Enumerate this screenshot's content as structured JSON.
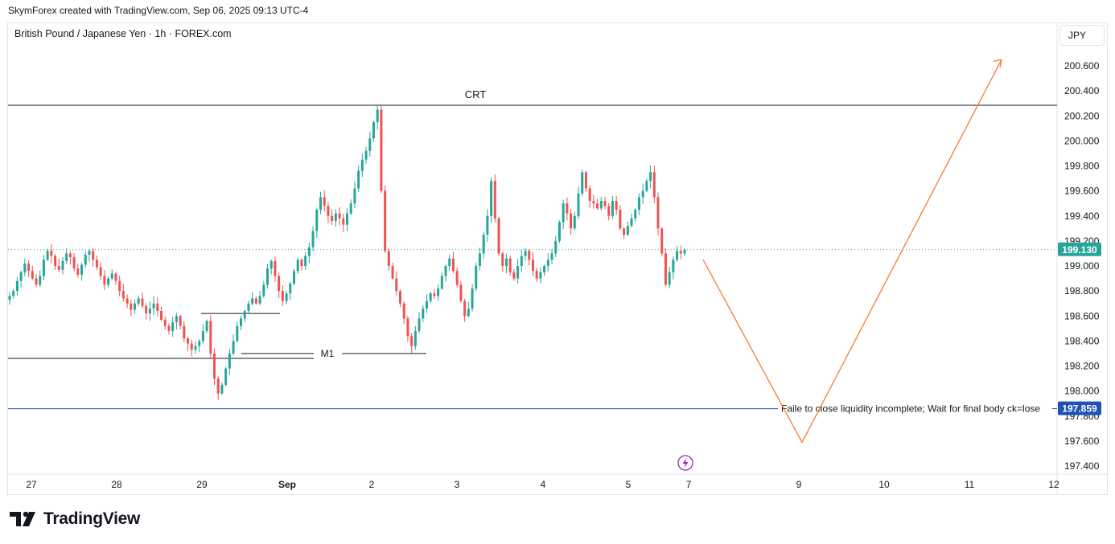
{
  "header": {
    "attribution": "SkymForex created with TradingView.com, Sep 06, 2025 09:13 UTC-4"
  },
  "symbol": {
    "title": "British Pound / Japanese Yen · 1h · FOREX.com",
    "currency": "JPY"
  },
  "footer": {
    "brand": "TradingView"
  },
  "colors": {
    "up": "#26a69a",
    "down": "#ef5350",
    "projection": "#f57c33",
    "level_blue": "#1e53b4",
    "current_price_bg": "#26a69a",
    "marker_purple": "#9c27b0"
  },
  "chart_data": {
    "type": "candlestick",
    "timeframe": "1h",
    "ylim": [
      197.4,
      200.6
    ],
    "y_ticks": [
      "200.600",
      "200.400",
      "200.200",
      "200.000",
      "199.800",
      "199.600",
      "199.400",
      "199.200",
      "199.000",
      "198.800",
      "198.600",
      "198.400",
      "198.200",
      "198.000",
      "197.800",
      "197.600",
      "197.400"
    ],
    "x_ticks": [
      "27",
      "28",
      "29",
      "Sep",
      "2",
      "3",
      "4",
      "5",
      "7",
      "9",
      "10",
      "11",
      "12"
    ],
    "current_price": {
      "value": 199.13,
      "label": "199.130"
    },
    "levels": [
      {
        "name": "CRT",
        "value": 200.285,
        "label": "CRT",
        "color": "#131722"
      },
      {
        "name": "M1",
        "value": 198.3,
        "label": "M1",
        "color": "#131722"
      },
      {
        "name": "swing-high-line",
        "value": 198.62,
        "label": "",
        "color": "#131722"
      },
      {
        "name": "liquidity-level",
        "value": 197.859,
        "label": "197.859",
        "color": "#1e53b4"
      }
    ],
    "annotation": "Faile to close liquidity incomplete; Wait for final body ck=lose",
    "projection_path": [
      {
        "x": "Sep 7 02:00",
        "y": 199.05
      },
      {
        "x": "Sep 9 00:00",
        "y": 197.59
      },
      {
        "x": "Sep 11 10:00",
        "y": 200.65
      }
    ],
    "close_path": [
      198.76,
      198.8,
      198.88,
      198.95,
      199.02,
      198.96,
      198.9,
      198.85,
      198.92,
      199.05,
      199.12,
      199.08,
      199.0,
      198.97,
      199.04,
      199.1,
      199.07,
      198.98,
      198.93,
      199.01,
      199.09,
      199.12,
      199.05,
      198.99,
      198.92,
      198.85,
      198.9,
      198.94,
      198.88,
      198.8,
      198.74,
      198.7,
      198.65,
      198.7,
      198.74,
      198.68,
      198.62,
      198.66,
      198.7,
      198.64,
      198.57,
      198.52,
      198.48,
      198.55,
      198.6,
      198.52,
      198.42,
      198.38,
      198.33,
      198.36,
      198.4,
      198.48,
      198.56,
      198.3,
      198.1,
      197.98,
      198.05,
      198.18,
      198.3,
      198.4,
      198.52,
      198.58,
      198.64,
      198.7,
      198.74,
      198.7,
      198.76,
      198.85,
      198.98,
      199.04,
      198.92,
      198.8,
      198.72,
      198.78,
      198.86,
      198.96,
      199.05,
      199.0,
      199.08,
      199.15,
      199.28,
      199.45,
      199.55,
      199.48,
      199.4,
      199.36,
      199.42,
      199.38,
      199.33,
      199.42,
      199.5,
      199.62,
      199.76,
      199.85,
      199.92,
      200.02,
      200.15,
      200.25,
      199.6,
      199.12,
      199.0,
      198.9,
      198.8,
      198.7,
      198.58,
      198.44,
      198.36,
      198.48,
      198.58,
      198.66,
      198.72,
      198.78,
      198.76,
      198.82,
      198.92,
      199.0,
      199.06,
      198.96,
      198.85,
      198.72,
      198.6,
      198.66,
      198.82,
      199.0,
      199.1,
      199.25,
      199.4,
      199.68,
      199.38,
      199.1,
      199.0,
      199.06,
      198.95,
      198.9,
      199.0,
      199.08,
      199.12,
      199.05,
      198.96,
      198.9,
      198.95,
      199.0,
      199.05,
      199.1,
      199.2,
      199.35,
      199.5,
      199.42,
      199.3,
      199.4,
      199.58,
      199.75,
      199.62,
      199.52,
      199.5,
      199.46,
      199.52,
      199.48,
      199.4,
      199.52,
      199.45,
      199.3,
      199.25,
      199.32,
      199.38,
      199.45,
      199.55,
      199.6,
      199.68,
      199.75,
      199.55,
      199.3,
      199.1,
      198.85,
      198.95,
      199.05,
      199.12,
      199.1,
      199.13
    ]
  }
}
